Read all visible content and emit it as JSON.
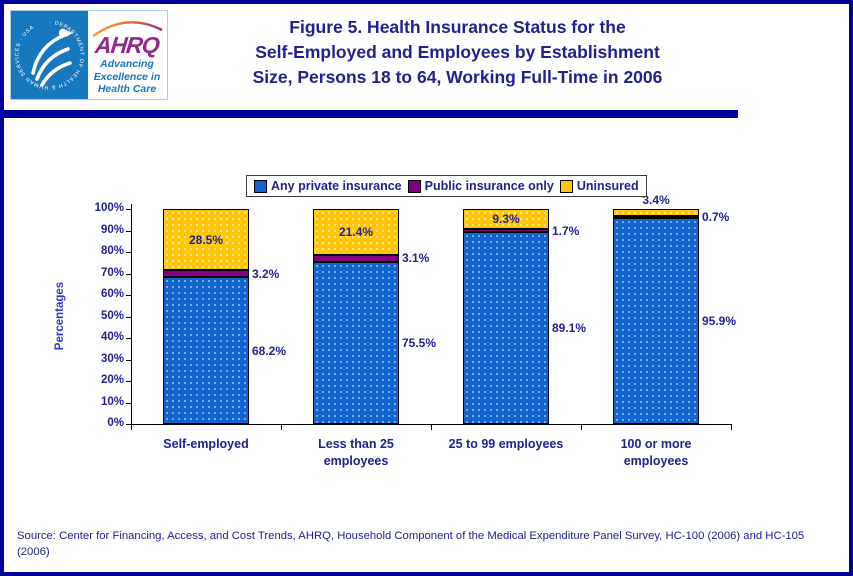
{
  "colors": {
    "frame_navy": "#000099",
    "navy_text": "#21218f",
    "ylabel_blue": "#3333cc",
    "hhs_blue": "#1878be",
    "ahrq_purple": "#93278f",
    "tagline_blue": "#1b75bc",
    "bar_blue": "#1464d0",
    "bar_purple": "#800080",
    "bar_gold": "#ffc60a"
  },
  "header": {
    "logo": {
      "hhs_emblem": "hhs-eagle-emblem",
      "hhs_ring_text": "DEPARTMENT OF HEALTH & HUMAN SERVICES · USA",
      "ahrq_acronym": "AHRQ",
      "tagline_lines": [
        "Advancing",
        "Excellence in",
        "Health Care"
      ]
    },
    "title_lines": [
      "Figure 5. Health Insurance Status for the",
      "Self-Employed and Employees by Establishment",
      "Size, Persons 18 to 64, Working Full-Time in 2006"
    ]
  },
  "chart_data": {
    "type": "bar",
    "stacked": true,
    "categories": [
      "Self-employed",
      "Less than 25 employees",
      "25 to 99 employees",
      "100 or more employees"
    ],
    "categories_display": [
      "Self-employed",
      "Less than 25\nemployees",
      "25 to 99 employees",
      "100 or more\nemployees"
    ],
    "series": [
      {
        "name": "Any private insurance",
        "color": "#1464d0",
        "values": [
          68.2,
          75.5,
          89.1,
          95.9
        ]
      },
      {
        "name": "Public insurance only",
        "color": "#800080",
        "values": [
          3.2,
          3.1,
          1.7,
          0.7
        ]
      },
      {
        "name": "Uninsured",
        "color": "#ffc60a",
        "values": [
          28.5,
          21.4,
          9.3,
          3.4
        ]
      }
    ],
    "ylabel": "Percentages",
    "ylim": [
      0,
      100
    ],
    "ytick_step": 10,
    "ytick_suffix": "%",
    "legend_position": "top",
    "grid": false,
    "value_label_format": "one_decimal_percent"
  },
  "footer": {
    "source": "Source: Center for Financing, Access, and Cost Trends, AHRQ, Household Component of the Medical Expenditure Panel Survey, HC-100 (2006) and HC-105 (2006)"
  }
}
